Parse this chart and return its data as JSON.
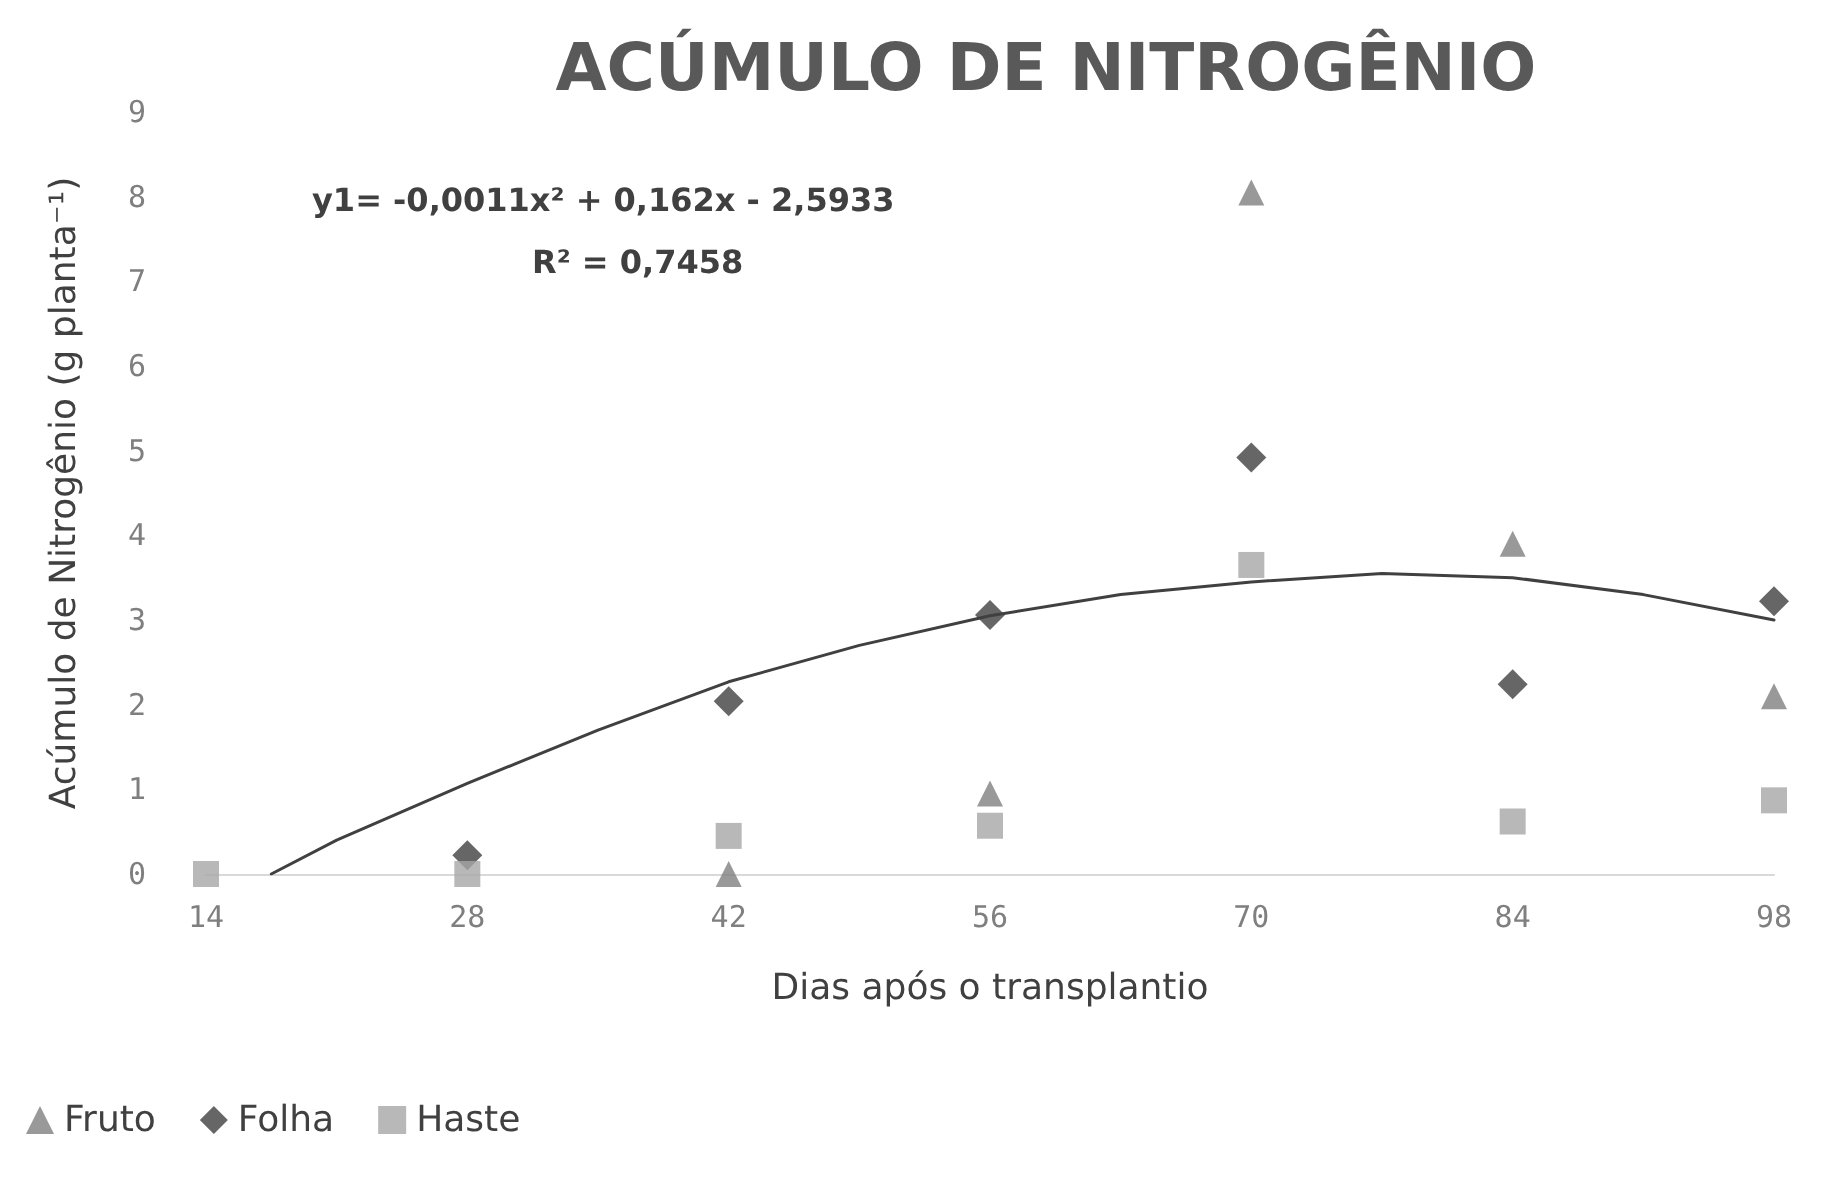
{
  "chart_data": {
    "type": "scatter",
    "title": "ACÚMULO DE NITROGÊNIO",
    "xlabel": "Dias após o transplantio",
    "ylabel": "Acúmulo de Nitrogênio (g planta⁻¹)",
    "x": [
      14,
      28,
      42,
      56,
      70,
      84,
      98
    ],
    "series": [
      {
        "name": "Fruto",
        "color": "#7f7f7f",
        "marker": "triangle",
        "values": [
          null,
          null,
          0,
          0.95,
          8.05,
          3.9,
          2.1
        ]
      },
      {
        "name": "Folha",
        "color": "#404040",
        "marker": "diamond",
        "values": [
          null,
          0.22,
          2.04,
          3.06,
          4.92,
          2.24,
          3.22
        ]
      },
      {
        "name": "Haste",
        "color": "#a6a6a6",
        "marker": "square",
        "values": [
          0,
          0,
          0.45,
          0.57,
          3.65,
          0.62,
          0.87
        ]
      },
      {
        "type": "line",
        "color": "#404040",
        "marker": "none",
        "x": [
          17.5,
          21,
          28,
          35,
          42,
          49,
          56,
          63,
          70,
          77,
          84,
          91,
          98
        ],
        "values": [
          0,
          0.4,
          1.07,
          1.7,
          2.27,
          2.7,
          3.05,
          3.3,
          3.45,
          3.55,
          3.5,
          3.3,
          3.0
        ]
      }
    ],
    "xlim": [
      14,
      98
    ],
    "xticks": [
      14,
      28,
      42,
      56,
      70,
      84,
      98
    ],
    "ylim": [
      0,
      9
    ],
    "yticks": [
      0,
      1,
      2,
      3,
      4,
      5,
      6,
      7,
      8,
      9
    ],
    "grid": false,
    "legend": "bottom left",
    "annotations": [
      "y1= -0,0011x² + 0,162x - 2,5933",
      "R² = 0,7458"
    ]
  }
}
